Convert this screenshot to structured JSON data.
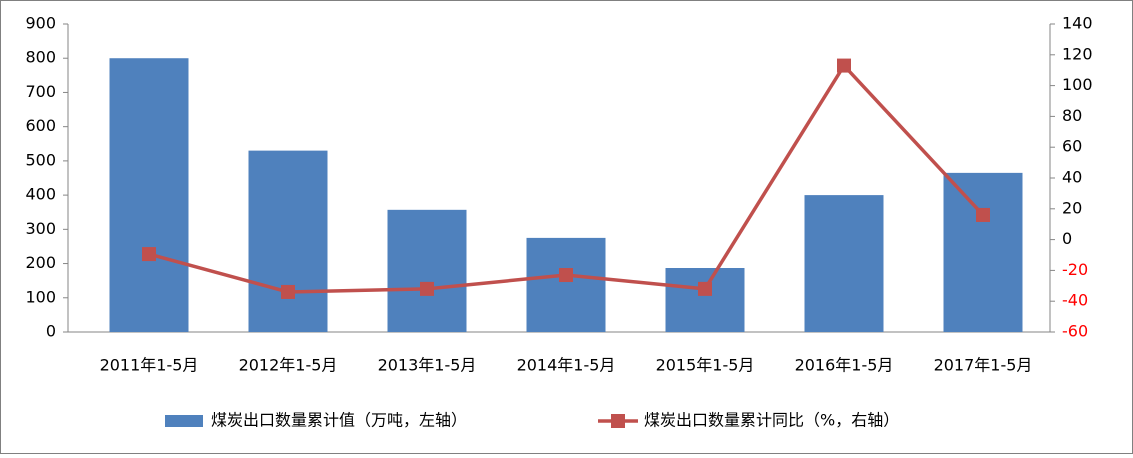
{
  "chart_data": {
    "type": "bar-line",
    "categories": [
      "2011年1-5月",
      "2012年1-5月",
      "2013年1-5月",
      "2014年1-5月",
      "2015年1-5月",
      "2016年1-5月",
      "2017年1-5月"
    ],
    "series": [
      {
        "name": "煤炭出口数量累计值（万吨，左轴）",
        "type": "bar",
        "color": "#4f81bd",
        "values": [
          800,
          530,
          357,
          275,
          187,
          400,
          465
        ]
      },
      {
        "name": "煤炭出口数量累计同比（%，右轴）",
        "type": "line",
        "axis": "y2",
        "color": "#c0504d",
        "values": [
          -9.4,
          -34,
          -32,
          -23,
          -32,
          113,
          16
        ]
      }
    ],
    "ylim": [
      0,
      900
    ],
    "yticks": [
      0,
      100,
      200,
      300,
      400,
      500,
      600,
      700,
      800,
      900
    ],
    "y2lim": [
      -60,
      140
    ],
    "y2ticks": [
      -60,
      -40,
      -20,
      0,
      20,
      40,
      60,
      80,
      100,
      120,
      140
    ],
    "y2_negative_tick_color": "#ff0000",
    "legend": "bottom"
  }
}
